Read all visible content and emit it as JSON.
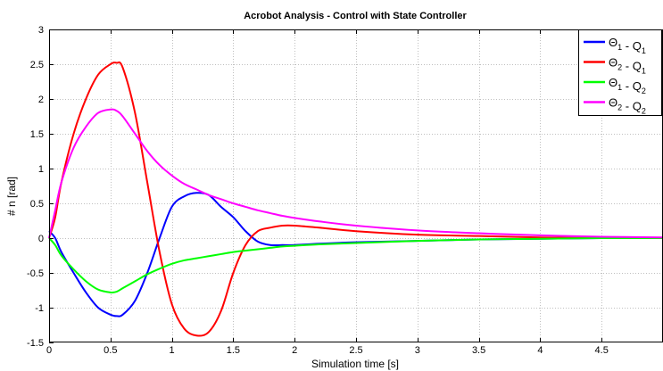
{
  "chart_data": {
    "type": "line",
    "title": "Acrobot Analysis - Control with State Controller",
    "xlabel": "Simulation time [s]",
    "ylabel": "# n [rad]",
    "xlim": [
      0,
      5
    ],
    "ylim": [
      -1.5,
      3
    ],
    "xticks": [
      0,
      0.5,
      1,
      1.5,
      2,
      2.5,
      3,
      3.5,
      4,
      4.5
    ],
    "yticks": [
      -1.5,
      -1,
      -0.5,
      0,
      0.5,
      1,
      1.5,
      2,
      2.5,
      3
    ],
    "grid": true,
    "legend_position": "top-right",
    "series": [
      {
        "name": "Θ1 - Q1",
        "color": "#0000ff",
        "x": [
          0,
          0.05,
          0.1,
          0.2,
          0.3,
          0.4,
          0.5,
          0.55,
          0.6,
          0.7,
          0.8,
          0.9,
          1.0,
          1.1,
          1.2,
          1.3,
          1.4,
          1.5,
          1.6,
          1.7,
          1.8,
          1.9,
          2.0,
          2.2,
          2.5,
          3.0,
          3.5,
          4.0,
          4.5,
          5.0
        ],
        "y": [
          0.1,
          0.0,
          -0.2,
          -0.5,
          -0.78,
          -1.0,
          -1.1,
          -1.12,
          -1.1,
          -0.9,
          -0.5,
          0.0,
          0.45,
          0.6,
          0.65,
          0.62,
          0.45,
          0.3,
          0.1,
          -0.05,
          -0.1,
          -0.1,
          -0.1,
          -0.08,
          -0.06,
          -0.04,
          -0.02,
          -0.01,
          0.0,
          0.0
        ]
      },
      {
        "name": "Θ2 - Q1",
        "color": "#ff0000",
        "x": [
          0,
          0.05,
          0.1,
          0.2,
          0.3,
          0.4,
          0.5,
          0.55,
          0.6,
          0.7,
          0.8,
          0.9,
          1.0,
          1.1,
          1.2,
          1.3,
          1.4,
          1.5,
          1.6,
          1.7,
          1.8,
          1.9,
          2.0,
          2.2,
          2.5,
          3.0,
          3.5,
          4.0,
          4.5,
          5.0
        ],
        "y": [
          0.0,
          0.3,
          0.8,
          1.5,
          2.0,
          2.35,
          2.5,
          2.52,
          2.45,
          1.8,
          0.8,
          -0.2,
          -0.95,
          -1.3,
          -1.4,
          -1.35,
          -1.05,
          -0.5,
          -0.1,
          0.1,
          0.15,
          0.18,
          0.18,
          0.15,
          0.1,
          0.05,
          0.03,
          0.01,
          0.0,
          0.0
        ]
      },
      {
        "name": "Θ1 - Q2",
        "color": "#00ff00",
        "x": [
          0,
          0.05,
          0.1,
          0.2,
          0.3,
          0.4,
          0.5,
          0.55,
          0.6,
          0.7,
          0.8,
          0.9,
          1.0,
          1.1,
          1.2,
          1.3,
          1.4,
          1.5,
          1.6,
          1.7,
          1.8,
          1.9,
          2.0,
          2.2,
          2.5,
          3.0,
          3.5,
          4.0,
          4.5,
          5.0
        ],
        "y": [
          0.0,
          -0.1,
          -0.25,
          -0.45,
          -0.62,
          -0.74,
          -0.78,
          -0.77,
          -0.72,
          -0.62,
          -0.52,
          -0.44,
          -0.37,
          -0.32,
          -0.29,
          -0.26,
          -0.23,
          -0.2,
          -0.18,
          -0.16,
          -0.14,
          -0.12,
          -0.11,
          -0.09,
          -0.07,
          -0.04,
          -0.02,
          -0.01,
          0.0,
          0.0
        ]
      },
      {
        "name": "Θ2 - Q2",
        "color": "#ff00ff",
        "x": [
          0,
          0.05,
          0.1,
          0.2,
          0.3,
          0.4,
          0.5,
          0.55,
          0.6,
          0.7,
          0.8,
          0.9,
          1.0,
          1.1,
          1.2,
          1.3,
          1.4,
          1.5,
          1.6,
          1.7,
          1.8,
          1.9,
          2.0,
          2.2,
          2.5,
          3.0,
          3.5,
          4.0,
          4.5,
          5.0
        ],
        "y": [
          0.0,
          0.4,
          0.8,
          1.3,
          1.6,
          1.8,
          1.85,
          1.83,
          1.75,
          1.5,
          1.25,
          1.05,
          0.9,
          0.78,
          0.7,
          0.62,
          0.56,
          0.5,
          0.45,
          0.4,
          0.36,
          0.32,
          0.29,
          0.24,
          0.18,
          0.11,
          0.07,
          0.04,
          0.02,
          0.01
        ]
      }
    ]
  }
}
